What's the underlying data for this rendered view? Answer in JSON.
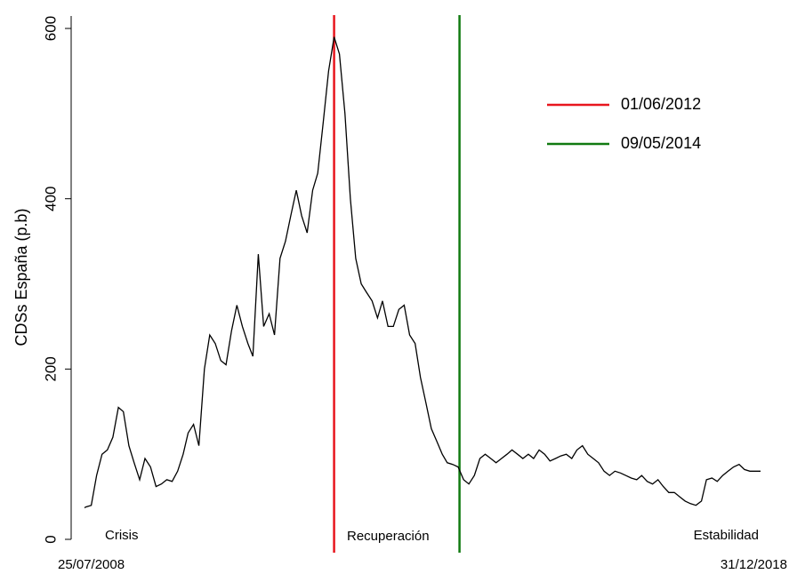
{
  "chart_data": {
    "type": "line",
    "y_label": "CDSs España (p.b)",
    "ylim": [
      0,
      615
    ],
    "yticks": [
      0,
      200,
      400,
      600
    ],
    "xlim": [
      "25/07/2008",
      "31/12/2018"
    ],
    "xticks": [
      "25/07/2008",
      "31/12/2018"
    ],
    "x": [
      "25/07/2008",
      "01/08/2008",
      "01/09/2008",
      "01/10/2008",
      "01/11/2008",
      "01/12/2008",
      "01/01/2009",
      "01/02/2009",
      "01/03/2009",
      "01/04/2009",
      "01/05/2009",
      "01/06/2009",
      "01/07/2009",
      "01/08/2009",
      "01/09/2009",
      "01/10/2009",
      "01/11/2009",
      "01/12/2009",
      "01/01/2010",
      "01/02/2010",
      "01/03/2010",
      "01/04/2010",
      "01/05/2010",
      "01/06/2010",
      "01/07/2010",
      "01/08/2010",
      "01/09/2010",
      "01/10/2010",
      "01/11/2010",
      "01/12/2010",
      "01/01/2011",
      "01/02/2011",
      "01/03/2011",
      "01/04/2011",
      "01/05/2011",
      "01/06/2011",
      "01/07/2011",
      "01/08/2011",
      "01/09/2011",
      "01/10/2011",
      "01/11/2011",
      "01/12/2011",
      "01/01/2012",
      "01/02/2012",
      "01/03/2012",
      "01/04/2012",
      "01/05/2012",
      "01/06/2012",
      "01/07/2012",
      "01/08/2012",
      "01/09/2012",
      "01/10/2012",
      "01/11/2012",
      "01/12/2012",
      "01/01/2013",
      "01/02/2013",
      "01/03/2013",
      "01/04/2013",
      "01/05/2013",
      "01/06/2013",
      "01/07/2013",
      "01/08/2013",
      "01/09/2013",
      "01/10/2013",
      "01/11/2013",
      "01/12/2013",
      "01/01/2014",
      "01/02/2014",
      "01/03/2014",
      "01/04/2014",
      "01/05/2014",
      "01/06/2014",
      "01/07/2014",
      "01/08/2014",
      "01/09/2014",
      "01/10/2014",
      "01/11/2014",
      "01/12/2014",
      "01/01/2015",
      "01/02/2015",
      "01/03/2015",
      "01/04/2015",
      "01/05/2015",
      "01/06/2015",
      "01/07/2015",
      "01/08/2015",
      "01/09/2015",
      "01/10/2015",
      "01/11/2015",
      "01/12/2015",
      "01/01/2016",
      "01/02/2016",
      "01/03/2016",
      "01/04/2016",
      "01/05/2016",
      "01/06/2016",
      "01/07/2016",
      "01/08/2016",
      "01/09/2016",
      "01/10/2016",
      "01/11/2016",
      "01/12/2016",
      "01/01/2017",
      "01/02/2017",
      "01/03/2017",
      "01/04/2017",
      "01/05/2017",
      "01/06/2017",
      "01/07/2017",
      "01/08/2017",
      "01/09/2017",
      "01/10/2017",
      "01/11/2017",
      "01/12/2017",
      "01/01/2018",
      "01/02/2018",
      "01/03/2018",
      "01/04/2018",
      "01/05/2018",
      "01/06/2018",
      "01/07/2018",
      "01/08/2018",
      "01/09/2018",
      "01/10/2018",
      "01/11/2018",
      "31/12/2018"
    ],
    "series": [
      {
        "color": "#000000",
        "values": [
          37,
          38,
          40,
          75,
          100,
          105,
          120,
          155,
          150,
          110,
          90,
          70,
          95,
          85,
          62,
          65,
          70,
          68,
          80,
          100,
          125,
          135,
          110,
          200,
          240,
          230,
          210,
          205,
          245,
          275,
          250,
          230,
          215,
          335,
          250,
          265,
          240,
          330,
          350,
          380,
          410,
          380,
          360,
          410,
          430,
          490,
          550,
          590,
          570,
          500,
          400,
          330,
          300,
          290,
          280,
          260,
          280,
          250,
          250,
          270,
          275,
          240,
          230,
          190,
          160,
          130,
          115,
          100,
          90,
          88,
          85,
          70,
          65,
          75,
          95,
          100,
          95,
          90,
          95,
          100,
          105,
          100,
          95,
          100,
          95,
          105,
          100,
          92,
          95,
          98,
          100,
          95,
          105,
          110,
          100,
          95,
          90,
          80,
          75,
          80,
          78,
          75,
          72,
          70,
          75,
          68,
          65,
          70,
          62,
          55,
          55,
          50,
          45,
          42,
          40,
          45,
          70,
          72,
          68,
          75,
          80,
          85,
          88,
          82,
          80,
          80
        ]
      }
    ],
    "vlines": [
      {
        "name": "01/06/2012",
        "x": "01/06/2012",
        "color": "#e8161e"
      },
      {
        "name": "09/05/2014",
        "x": "09/05/2014",
        "color": "#117a11"
      }
    ],
    "annotations": [
      "Crisis",
      "Recuperación",
      "Estabilidad"
    ]
  }
}
